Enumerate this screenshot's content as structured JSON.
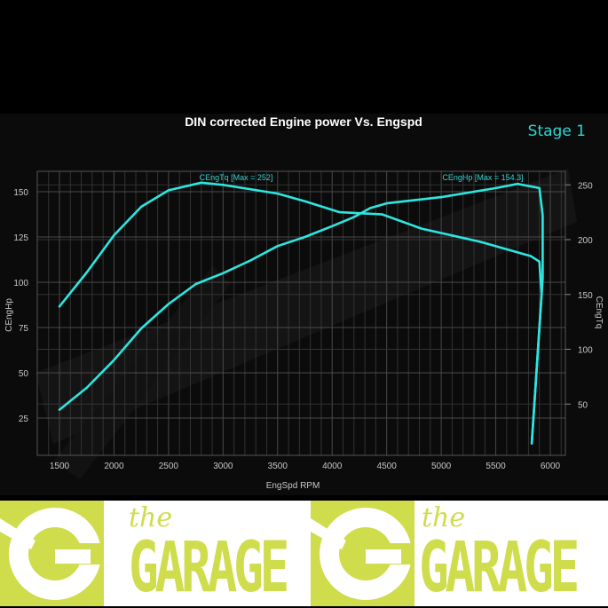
{
  "chart_data": {
    "type": "line",
    "title": "DIN corrected Engine power Vs. Engspd",
    "badge": "Stage 1",
    "xlabel": "EngSpd RPM",
    "ylabel_left": "CEngHp",
    "ylabel_right": "CEngTq",
    "xlim": [
      1300,
      6150
    ],
    "ylim_left": [
      4,
      161
    ],
    "ylim_right": [
      3,
      262
    ],
    "x_ticks": [
      1500,
      2000,
      2500,
      3000,
      3500,
      4000,
      4500,
      5000,
      5500,
      6000
    ],
    "y_ticks_left": [
      25,
      50,
      75,
      100,
      125,
      150
    ],
    "y_ticks_right": [
      50,
      100,
      150,
      200,
      250
    ],
    "grid": true,
    "series": [
      {
        "name": "CEngHp",
        "axis": "left",
        "annotation": "CEngHp [Max = 154.3]",
        "color": "#2ee6e0",
        "x": [
          1500,
          1750,
          2000,
          2250,
          2500,
          2750,
          3000,
          3250,
          3500,
          3750,
          4000,
          4200,
          4350,
          4500,
          5000,
          5500,
          5700,
          5900,
          5930,
          5930,
          5830
        ],
        "y": [
          29.6,
          41.7,
          57,
          74.5,
          88,
          99,
          105,
          112,
          120,
          125,
          131,
          136,
          141,
          143.6,
          147,
          152,
          154.3,
          152,
          137,
          102,
          11
        ]
      },
      {
        "name": "CEngTq",
        "axis": "right",
        "annotation": "CEngTq [Max = 252]",
        "color": "#2ee6e0",
        "x": [
          1500,
          1750,
          2000,
          2250,
          2500,
          2800,
          3000,
          3500,
          3750,
          4070,
          4460,
          4820,
          5360,
          5820,
          5900,
          5920,
          5830
        ],
        "y": [
          139,
          170,
          204,
          230,
          245,
          252,
          250,
          242,
          235,
          225,
          223,
          210,
          198,
          185,
          180,
          150,
          14
        ]
      }
    ]
  },
  "logo": {
    "small": "the",
    "big": "GARAGE"
  }
}
